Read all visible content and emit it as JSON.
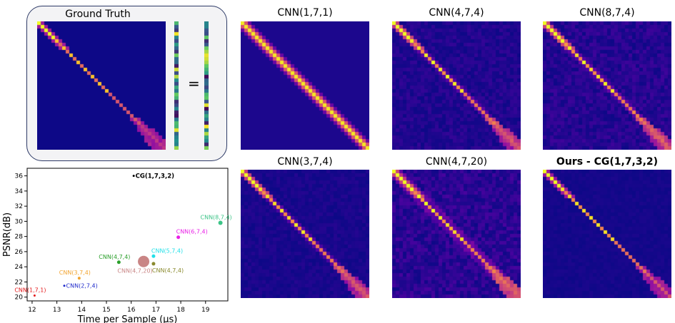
{
  "ground_truth": {
    "title": "Ground Truth",
    "equals": "="
  },
  "panels": [
    {
      "title": "CNN(1,7,1)",
      "bold": false
    },
    {
      "title": "CNN(4,7,4)",
      "bold": false
    },
    {
      "title": "CNN(8,7,4)",
      "bold": false
    },
    {
      "title": "CNN(3,7,4)",
      "bold": false
    },
    {
      "title": "CNN(4,7,20)",
      "bold": false
    },
    {
      "title": "Ours - CG(1,7,3,2)",
      "bold": true
    }
  ],
  "chart_data": {
    "type": "scatter",
    "xlabel": "Time per Sample (μs)",
    "ylabel": "PSNR(dB)",
    "xlim": [
      11.8,
      19.9
    ],
    "ylim": [
      19.5,
      37
    ],
    "xticks": [
      12,
      13,
      14,
      15,
      16,
      17,
      18,
      19
    ],
    "yticks": [
      20,
      22,
      24,
      26,
      28,
      30,
      32,
      34,
      36
    ],
    "grid": false,
    "points": [
      {
        "label": "CNN(1,7,1)",
        "x": 12.1,
        "y": 20.2,
        "color": "#e41a1c",
        "size": 1.5,
        "bold": false,
        "label_pos": "left-top"
      },
      {
        "label": "CNN(2,7,4)",
        "x": 13.3,
        "y": 21.5,
        "color": "#1f2acb",
        "size": 1.5,
        "bold": false,
        "label_pos": "right"
      },
      {
        "label": "CNN(3,7,4)",
        "x": 13.9,
        "y": 22.5,
        "color": "#f2a531",
        "size": 2,
        "bold": false,
        "label_pos": "left-top"
      },
      {
        "label": "CNN(4,7,4)",
        "x": 15.5,
        "y": 24.6,
        "color": "#2ca02c",
        "size": 2.5,
        "bold": false,
        "label_pos": "left-top"
      },
      {
        "label": "CNN(4,7,20)",
        "x": 16.5,
        "y": 24.7,
        "color": "#c98585",
        "size": 8,
        "bold": false,
        "label_pos": "left-bottom"
      },
      {
        "label": "CNN(4,7,4)",
        "x": 16.9,
        "y": 24.4,
        "color": "#8a8a2e",
        "size": 2.5,
        "bold": false,
        "label_pos": "right-bottom"
      },
      {
        "label": "CNN(5,7,4)",
        "x": 16.9,
        "y": 25.4,
        "color": "#21e0e8",
        "size": 2.5,
        "bold": false,
        "label_pos": "right-top"
      },
      {
        "label": "CNN(6,7,4)",
        "x": 17.9,
        "y": 27.9,
        "color": "#e91ee6",
        "size": 2.5,
        "bold": false,
        "label_pos": "right-top"
      },
      {
        "label": "CNN(8,7,4)",
        "x": 19.6,
        "y": 29.8,
        "color": "#3cc487",
        "size": 3,
        "bold": false,
        "label_pos": "left-top"
      },
      {
        "label": "CG(1,7,3,2)",
        "x": 16.1,
        "y": 36.0,
        "color": "#000000",
        "size": 1.5,
        "bold": true,
        "label_pos": "right"
      }
    ]
  }
}
